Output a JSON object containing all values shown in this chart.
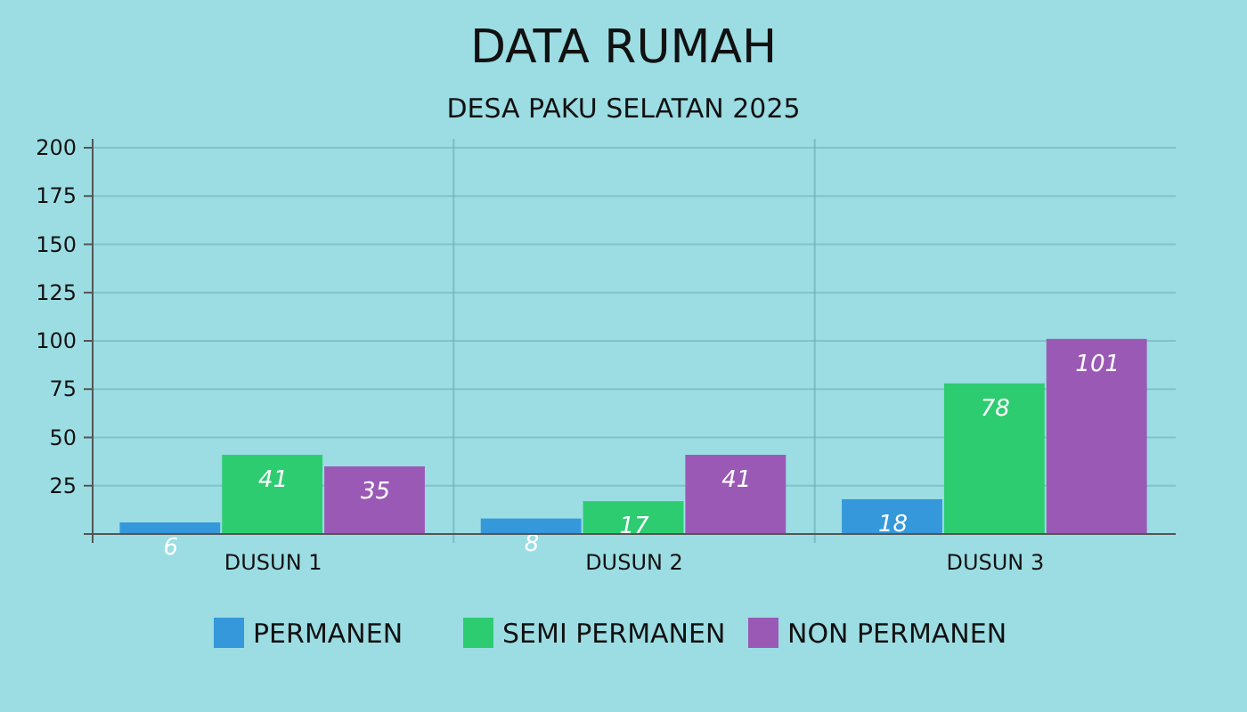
{
  "chart_data": {
    "type": "bar",
    "title": "DATA RUMAH",
    "subtitle": "DESA PAKU SELATAN 2025",
    "categories": [
      "DUSUN 1",
      "DUSUN 2",
      "DUSUN 3"
    ],
    "series": [
      {
        "name": "PERMANEN",
        "color": "#3498db",
        "values": [
          6,
          8,
          18
        ]
      },
      {
        "name": "SEMI PERMANEN",
        "color": "#2ecc71",
        "values": [
          41,
          17,
          78
        ]
      },
      {
        "name": "NON PERMANEN",
        "color": "#9b59b6",
        "values": [
          35,
          41,
          101
        ]
      }
    ],
    "ylim": [
      0,
      200
    ],
    "yticks": [
      {
        "value": 0,
        "label": null
      },
      25,
      50,
      75,
      100,
      125,
      150,
      175,
      200
    ],
    "grid": true,
    "legend": "bottom",
    "data_labels": true
  }
}
